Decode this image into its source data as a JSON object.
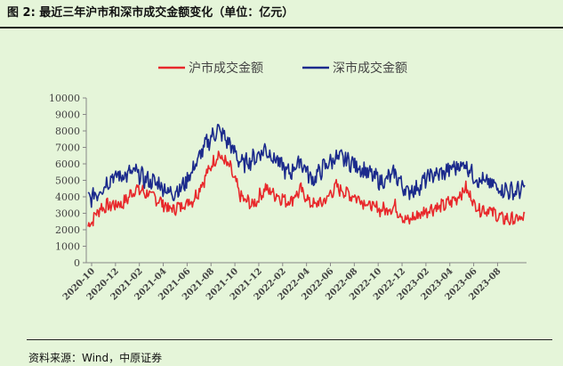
{
  "header": {
    "title": "图 2:  最近三年沪市和深市成交金额变化（单位：亿元）"
  },
  "footer": {
    "source": "资料来源：Wind，中原证券"
  },
  "chart_data": {
    "type": "line",
    "title": "",
    "xlabel": "",
    "ylabel": "",
    "ylim": [
      0,
      10000
    ],
    "y_ticks": [
      "0",
      "1000",
      "2000",
      "3000",
      "4000",
      "5000",
      "6000",
      "7000",
      "8000",
      "9000",
      "10000"
    ],
    "x_tick_labels": [
      "2020-10",
      "2020-12",
      "2021-02",
      "2021-04",
      "2021-06",
      "2021-08",
      "2021-10",
      "2021-12",
      "2022-02",
      "2022-04",
      "2022-06",
      "2022-08",
      "2022-10",
      "2022-12",
      "2023-02",
      "2023-04",
      "2023-06",
      "2023-08"
    ],
    "legend_position": "top-center",
    "grid": false,
    "colors": {
      "sh": "#e8282b",
      "sz": "#1b2a8c",
      "axis": "#888888"
    },
    "categories": [
      "2020-09",
      "2020-10",
      "2020-11",
      "2020-12",
      "2021-01",
      "2021-02",
      "2021-03",
      "2021-04",
      "2021-05",
      "2021-06",
      "2021-07",
      "2021-08",
      "2021-09",
      "2021-10",
      "2021-11",
      "2021-12",
      "2022-01",
      "2022-02",
      "2022-03",
      "2022-04",
      "2022-05",
      "2022-06",
      "2022-07",
      "2022-08",
      "2022-09",
      "2022-10",
      "2022-11",
      "2022-12",
      "2023-01",
      "2023-02",
      "2023-03",
      "2023-04",
      "2023-05",
      "2023-06",
      "2023-07",
      "2023-08",
      "2023-09",
      "2023-10"
    ],
    "series": [
      {
        "name": "沪市成交金额",
        "values": [
          2200,
          3300,
          3500,
          3600,
          4500,
          4200,
          3800,
          3200,
          3500,
          3900,
          5300,
          6600,
          5800,
          3900,
          3500,
          4500,
          4100,
          3700,
          4400,
          3500,
          3700,
          4600,
          4200,
          3900,
          3400,
          3200,
          3400,
          2500,
          2900,
          3300,
          3400,
          3800,
          4500,
          3300,
          3200,
          2700,
          2600,
          2700
        ]
      },
      {
        "name": "深市成交金额",
        "values": [
          3800,
          4400,
          5200,
          5300,
          5500,
          5000,
          4800,
          4200,
          4600,
          5800,
          7200,
          8100,
          7200,
          6000,
          6300,
          6900,
          6200,
          5400,
          6200,
          5000,
          5800,
          6400,
          6200,
          5800,
          5300,
          4900,
          5400,
          4300,
          4600,
          5300,
          5400,
          5800,
          6000,
          5000,
          4800,
          4500,
          4300,
          4500
        ]
      }
    ]
  }
}
